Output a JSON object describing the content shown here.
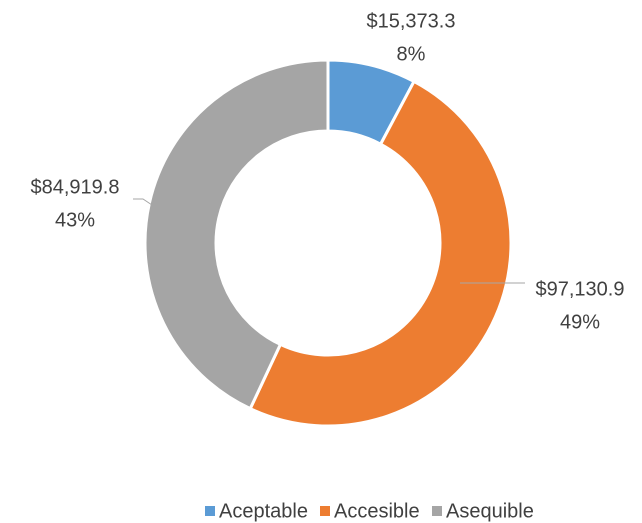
{
  "chart_data": {
    "type": "donut",
    "categories": [
      "Aceptable",
      "Accesible",
      "Asequible"
    ],
    "values": [
      15373.3,
      97130.9,
      84919.8
    ],
    "value_labels": [
      "$15,373.3",
      "$97,130.9",
      "$84,919.8"
    ],
    "percentages": [
      8,
      49,
      43
    ],
    "percentage_labels": [
      "8%",
      "49%",
      "43%"
    ],
    "colors": [
      "#5b9bd5",
      "#ed7d31",
      "#a5a5a5"
    ],
    "legend": "bottom"
  }
}
